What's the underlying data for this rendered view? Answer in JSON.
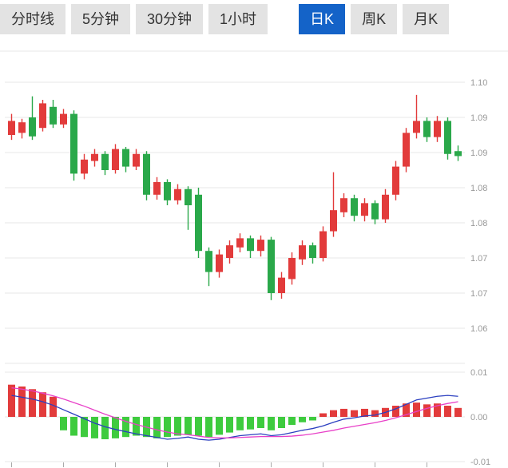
{
  "tabbar": {
    "items": [
      {
        "label": "分时线",
        "selected": false
      },
      {
        "label": "5分钟",
        "selected": false
      },
      {
        "label": "30分钟",
        "selected": false
      },
      {
        "label": "1小时",
        "selected": false
      },
      {
        "label": "日K",
        "selected": true
      },
      {
        "label": "周K",
        "selected": false
      },
      {
        "label": "月K",
        "selected": false
      }
    ]
  },
  "colors": {
    "up": "#e23b3b",
    "down": "#2aa84a",
    "macd_up": "#e23b3b",
    "macd_down": "#3ecb3e",
    "dif_line": "#2b3fc0",
    "dea_line": "#e840c8",
    "grid": "#e7e7e7",
    "axis_label": "#999999",
    "tick": "#aaaaaa",
    "tab_bg": "#e3e3e3",
    "tab_text": "#333333",
    "tab_active_bg": "#1463c8",
    "tab_active_text": "#ffffff"
  },
  "chart_data": {
    "type": "candlestick",
    "title": "",
    "legend_position": "none",
    "grid": true,
    "candle_format": [
      "open",
      "high",
      "low",
      "close"
    ],
    "price_panel": {
      "y_gridlines": [
        {
          "value": 1.095,
          "label": "1.10"
        },
        {
          "value": 1.09,
          "label": "1.09"
        },
        {
          "value": 1.085,
          "label": "1.09"
        },
        {
          "value": 1.08,
          "label": "1.08"
        },
        {
          "value": 1.075,
          "label": "1.08"
        },
        {
          "value": 1.07,
          "label": "1.07"
        },
        {
          "value": 1.065,
          "label": "1.07"
        },
        {
          "value": 1.06,
          "label": "1.06"
        },
        {
          "value": 1.055,
          "label": ""
        }
      ],
      "y_range": [
        1.055,
        1.0995
      ],
      "candles": [
        [
          1.0875,
          1.0905,
          1.0868,
          1.0895
        ],
        [
          1.0878,
          1.0898,
          1.087,
          1.0893
        ],
        [
          1.09,
          1.093,
          1.0868,
          1.0873
        ],
        [
          1.0885,
          1.0925,
          1.088,
          1.092
        ],
        [
          1.0915,
          1.0925,
          1.0885,
          1.089
        ],
        [
          1.089,
          1.0912,
          1.0885,
          1.0905
        ],
        [
          1.0905,
          1.091,
          1.081,
          1.082
        ],
        [
          1.082,
          1.0848,
          1.0812,
          1.084
        ],
        [
          1.0838,
          1.0855,
          1.083,
          1.0848
        ],
        [
          1.0848,
          1.0852,
          1.0818,
          1.0825
        ],
        [
          1.0825,
          1.0862,
          1.082,
          1.0855
        ],
        [
          1.0855,
          1.0858,
          1.0822,
          1.083
        ],
        [
          1.083,
          1.0855,
          1.0825,
          1.0848
        ],
        [
          1.0848,
          1.0852,
          1.0782,
          1.079
        ],
        [
          1.079,
          1.0815,
          1.0783,
          1.0808
        ],
        [
          1.0808,
          1.0812,
          1.0775,
          1.0782
        ],
        [
          1.0782,
          1.0805,
          1.0776,
          1.0798
        ],
        [
          1.0798,
          1.0802,
          1.074,
          1.0775
        ],
        [
          1.079,
          1.08,
          1.07,
          1.071
        ],
        [
          1.071,
          1.0715,
          1.066,
          1.068
        ],
        [
          1.068,
          1.0712,
          1.0672,
          1.0705
        ],
        [
          1.07,
          1.0725,
          1.0692,
          1.0718
        ],
        [
          1.0715,
          1.0735,
          1.0708,
          1.0728
        ],
        [
          1.0728,
          1.0732,
          1.07,
          1.071
        ],
        [
          1.071,
          1.0732,
          1.0702,
          1.0726
        ],
        [
          1.0726,
          1.073,
          1.064,
          1.065
        ],
        [
          1.065,
          1.068,
          1.0642,
          1.0672
        ],
        [
          1.067,
          1.0708,
          1.0662,
          1.07
        ],
        [
          1.0698,
          1.0725,
          1.069,
          1.0718
        ],
        [
          1.0718,
          1.0722,
          1.0692,
          1.07
        ],
        [
          1.07,
          1.0745,
          1.0695,
          1.0738
        ],
        [
          1.0738,
          1.0822,
          1.073,
          1.0768
        ],
        [
          1.0765,
          1.0792,
          1.0758,
          1.0785
        ],
        [
          1.0785,
          1.079,
          1.0752,
          1.076
        ],
        [
          1.076,
          1.0785,
          1.0752,
          1.0778
        ],
        [
          1.0778,
          1.0782,
          1.0748,
          1.0755
        ],
        [
          1.0755,
          1.0798,
          1.075,
          1.079
        ],
        [
          1.079,
          1.0838,
          1.0782,
          1.083
        ],
        [
          1.083,
          1.0885,
          1.0822,
          1.0878
        ],
        [
          1.0878,
          1.0932,
          1.087,
          1.0895
        ],
        [
          1.0895,
          1.09,
          1.0865,
          1.0872
        ],
        [
          1.0872,
          1.0902,
          1.0865,
          1.0895
        ],
        [
          1.0895,
          1.09,
          1.084,
          1.0848
        ],
        [
          1.0852,
          1.086,
          1.0838,
          1.0845
        ]
      ]
    },
    "macd_panel": {
      "y_gridlines": [
        {
          "value": 0.01,
          "label": "0.01"
        },
        {
          "value": 0.0,
          "label": "0.00"
        },
        {
          "value": -0.01,
          "label": "-0.01"
        }
      ],
      "y_range": [
        -0.0114,
        0.0111
      ],
      "histogram": [
        0.0072,
        0.0068,
        0.0062,
        0.0055,
        0.0045,
        -0.003,
        -0.0042,
        -0.0045,
        -0.0048,
        -0.005,
        -0.0048,
        -0.0045,
        -0.0042,
        -0.0045,
        -0.0048,
        -0.0045,
        -0.0042,
        -0.004,
        -0.0042,
        -0.0045,
        -0.004,
        -0.0035,
        -0.003,
        -0.0028,
        -0.0025,
        -0.003,
        -0.0025,
        -0.0018,
        -0.0012,
        -0.0008,
        0.0008,
        0.0015,
        0.0018,
        0.0015,
        0.0018,
        0.0015,
        0.002,
        0.0025,
        0.003,
        0.0032,
        0.0028,
        0.003,
        0.0025,
        0.002
      ],
      "lines": [
        {
          "name": "DIF",
          "color": "dif_line",
          "values": [
            0.0048,
            0.0044,
            0.004,
            0.0034,
            0.0026,
            0.0016,
            0.0006,
            -0.0004,
            -0.0014,
            -0.0022,
            -0.0028,
            -0.0033,
            -0.0038,
            -0.0042,
            -0.0046,
            -0.005,
            -0.0048,
            -0.0045,
            -0.005,
            -0.0052,
            -0.005,
            -0.0046,
            -0.0042,
            -0.004,
            -0.0038,
            -0.0042,
            -0.004,
            -0.0035,
            -0.003,
            -0.0026,
            -0.002,
            -0.0012,
            -0.0005,
            -0.0002,
            0.0002,
            0.0004,
            0.001,
            0.0018,
            0.0028,
            0.0038,
            0.0042,
            0.0046,
            0.0048,
            0.0046
          ]
        },
        {
          "name": "DEA",
          "color": "dea_line",
          "values": [
            0.0065,
            0.0062,
            0.0058,
            0.0053,
            0.0047,
            0.004,
            0.0032,
            0.0024,
            0.0015,
            0.0006,
            -0.0002,
            -0.001,
            -0.0017,
            -0.0023,
            -0.0029,
            -0.0034,
            -0.0038,
            -0.004,
            -0.0043,
            -0.0046,
            -0.0047,
            -0.0047,
            -0.0046,
            -0.0045,
            -0.0044,
            -0.0044,
            -0.0044,
            -0.0043,
            -0.0041,
            -0.0038,
            -0.0034,
            -0.003,
            -0.0025,
            -0.0021,
            -0.0017,
            -0.0013,
            -0.0008,
            -0.0002,
            0.0005,
            0.0012,
            0.0019,
            0.0025,
            0.003,
            0.0034
          ]
        }
      ]
    }
  }
}
